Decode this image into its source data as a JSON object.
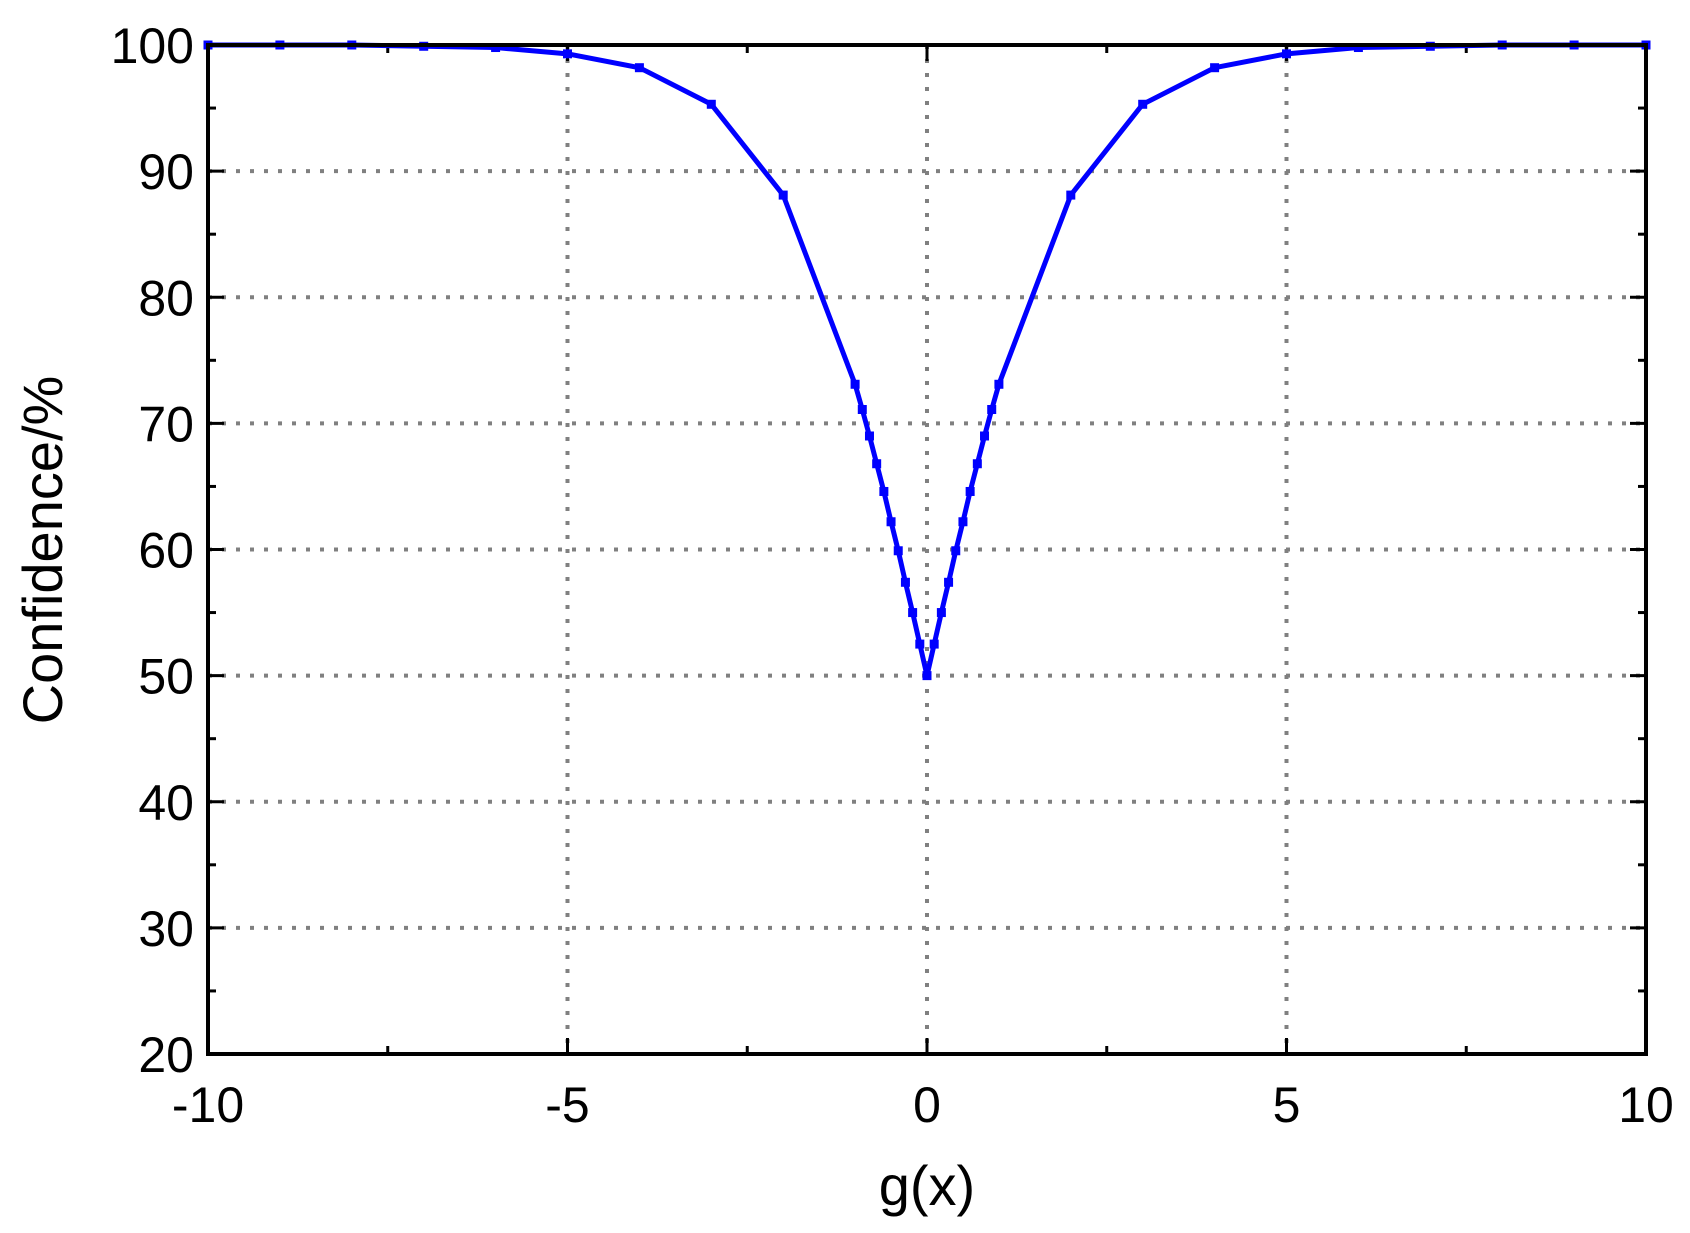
{
  "chart_data": {
    "type": "line",
    "x_label": "g(x)",
    "y_label": "Confidence/%",
    "xlim": [
      -10,
      10
    ],
    "xticks": [
      -10,
      -5,
      0,
      5,
      10
    ],
    "ylim": [
      20,
      100
    ],
    "yticks": [
      20,
      30,
      40,
      50,
      60,
      70,
      80,
      90,
      100
    ],
    "grid": true,
    "series": [
      {
        "color": "#0000ff",
        "x": [
          -10,
          -9,
          -8,
          -7,
          -6,
          -5,
          -4,
          -3,
          -2,
          -1,
          -0.9,
          -0.8,
          -0.7,
          -0.6,
          -0.5,
          -0.4,
          -0.3,
          -0.2,
          -0.1,
          0,
          0.1,
          0.2,
          0.3,
          0.4,
          0.5,
          0.6,
          0.7,
          0.8,
          0.9,
          1,
          2,
          3,
          4,
          5,
          6,
          7,
          8,
          9,
          10
        ],
        "values": [
          100,
          100,
          100,
          99.9,
          99.8,
          99.3,
          98.2,
          95.3,
          88.1,
          73.1,
          71.1,
          69.0,
          66.8,
          64.6,
          62.2,
          59.9,
          57.4,
          55.0,
          52.5,
          50,
          52.5,
          55.0,
          57.4,
          59.9,
          62.2,
          64.6,
          66.8,
          69.0,
          71.1,
          73.1,
          88.1,
          95.3,
          98.2,
          99.3,
          99.8,
          99.9,
          100,
          100,
          100
        ]
      }
    ]
  }
}
